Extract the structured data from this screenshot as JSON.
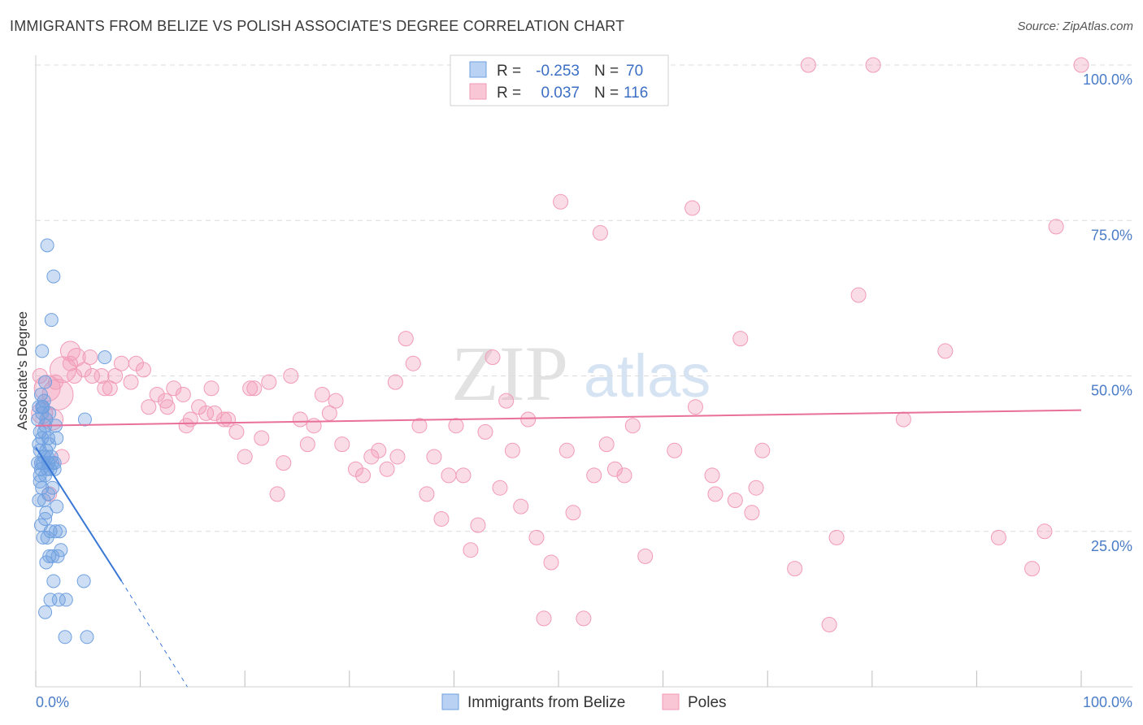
{
  "title": "IMMIGRANTS FROM BELIZE VS POLISH ASSOCIATE'S DEGREE CORRELATION CHART",
  "source": "Source: ZipAtlas.com",
  "watermark": {
    "zip": "ZIP",
    "atlas": "atlas"
  },
  "colors": {
    "blue": "#6fa0e0",
    "blue_line": "#3a78d6",
    "pink": "#f29bb6",
    "pink_line": "#e8709a"
  },
  "legend": {
    "rows": [
      {
        "r_label": "R =",
        "r_value": "-0.253",
        "n_label": "N =",
        "n_value": "70"
      },
      {
        "r_label": "R =",
        "r_value": "0.037",
        "n_label": "N =",
        "n_value": "116"
      }
    ]
  },
  "bottom_legend": {
    "series1": "Immigrants from Belize",
    "series2": "Poles"
  },
  "chart_data": {
    "type": "scatter",
    "title": "IMMIGRANTS FROM BELIZE VS POLISH ASSOCIATE'S DEGREE CORRELATION CHART",
    "xlabel": "",
    "ylabel": "Associate's Degree",
    "xlim": [
      0,
      100
    ],
    "ylim": [
      0,
      100
    ],
    "x_ticks": [
      "0.0%",
      "100.0%"
    ],
    "y_ticks": [
      {
        "value": 25,
        "label": "25.0%"
      },
      {
        "value": 50,
        "label": "50.0%"
      },
      {
        "value": 75,
        "label": "75.0%"
      },
      {
        "value": 100,
        "label": "100.0%"
      }
    ],
    "grid": true,
    "series": [
      {
        "name": "Immigrants from Belize",
        "r": -0.253,
        "n": 70,
        "trend": {
          "x0": 0,
          "y0": 38.5,
          "x1": 8.2,
          "y1": 17.0,
          "dash_to_x": 14.5,
          "dash_to_y": 0.0
        },
        "points": [
          [
            0.3,
            39
          ],
          [
            0.4,
            41
          ],
          [
            0.5,
            36
          ],
          [
            0.6,
            44
          ],
          [
            0.7,
            45
          ],
          [
            0.8,
            37
          ],
          [
            0.9,
            42
          ],
          [
            1.0,
            38
          ],
          [
            1.1,
            35
          ],
          [
            1.2,
            40
          ],
          [
            0.5,
            47
          ],
          [
            0.6,
            54
          ],
          [
            0.9,
            49
          ],
          [
            1.1,
            71
          ],
          [
            1.7,
            66
          ],
          [
            1.5,
            59
          ],
          [
            1.3,
            44
          ],
          [
            1.9,
            42
          ],
          [
            2.0,
            40
          ],
          [
            1.8,
            36
          ],
          [
            0.4,
            33
          ],
          [
            0.6,
            32
          ],
          [
            0.8,
            30
          ],
          [
            1.0,
            28
          ],
          [
            1.2,
            36
          ],
          [
            1.4,
            35
          ],
          [
            1.6,
            36
          ],
          [
            1.8,
            35
          ],
          [
            2.0,
            29
          ],
          [
            0.7,
            24
          ],
          [
            1.4,
            25
          ],
          [
            1.9,
            25
          ],
          [
            2.3,
            25
          ],
          [
            1.1,
            24
          ],
          [
            1.3,
            21
          ],
          [
            1.0,
            20
          ],
          [
            1.6,
            21
          ],
          [
            2.1,
            21
          ],
          [
            2.4,
            22
          ],
          [
            1.7,
            17
          ],
          [
            1.4,
            14
          ],
          [
            2.2,
            14
          ],
          [
            2.9,
            14
          ],
          [
            0.9,
            12
          ],
          [
            2.8,
            8
          ],
          [
            4.9,
            8
          ],
          [
            4.6,
            17
          ],
          [
            4.7,
            43
          ],
          [
            6.6,
            53
          ],
          [
            0.3,
            45
          ],
          [
            0.2,
            43
          ],
          [
            0.4,
            38
          ],
          [
            0.6,
            40
          ],
          [
            0.8,
            41
          ],
          [
            1.0,
            43
          ],
          [
            0.5,
            35
          ],
          [
            0.7,
            36
          ],
          [
            0.9,
            34
          ],
          [
            1.2,
            31
          ],
          [
            1.5,
            37
          ],
          [
            0.3,
            30
          ],
          [
            0.5,
            26
          ],
          [
            1.1,
            37
          ],
          [
            1.3,
            39
          ],
          [
            0.6,
            45
          ],
          [
            0.8,
            46
          ],
          [
            0.2,
            36
          ],
          [
            0.4,
            34
          ],
          [
            1.6,
            32
          ],
          [
            0.9,
            27
          ]
        ]
      },
      {
        "name": "Poles",
        "r": 0.037,
        "n": 116,
        "trend": {
          "x0": 0,
          "y0": 42,
          "x1": 100,
          "y1": 44.5
        },
        "points": [
          [
            0.6,
            44
          ],
          [
            1.1,
            48
          ],
          [
            1.6,
            43
          ],
          [
            2.1,
            47
          ],
          [
            2.6,
            51
          ],
          [
            3.3,
            54
          ],
          [
            3.9,
            53
          ],
          [
            4.6,
            51
          ],
          [
            5.4,
            50
          ],
          [
            6.3,
            50
          ],
          [
            7.1,
            48
          ],
          [
            8.2,
            52
          ],
          [
            9.1,
            49
          ],
          [
            10.3,
            51
          ],
          [
            10.8,
            45
          ],
          [
            11.6,
            47
          ],
          [
            12.4,
            46
          ],
          [
            13.2,
            48
          ],
          [
            14.1,
            47
          ],
          [
            14.8,
            43
          ],
          [
            15.6,
            45
          ],
          [
            16.3,
            44
          ],
          [
            17.1,
            44
          ],
          [
            18.4,
            43
          ],
          [
            19.2,
            41
          ],
          [
            20.0,
            37
          ],
          [
            20.5,
            48
          ],
          [
            21.6,
            40
          ],
          [
            22.3,
            49
          ],
          [
            23.1,
            31
          ],
          [
            23.7,
            36
          ],
          [
            24.4,
            50
          ],
          [
            25.3,
            43
          ],
          [
            26.0,
            39
          ],
          [
            26.6,
            42
          ],
          [
            27.4,
            47
          ],
          [
            28.1,
            44
          ],
          [
            28.7,
            46
          ],
          [
            29.3,
            39
          ],
          [
            30.6,
            35
          ],
          [
            31.3,
            34
          ],
          [
            32.1,
            37
          ],
          [
            32.8,
            38
          ],
          [
            33.6,
            35
          ],
          [
            34.4,
            49
          ],
          [
            35.4,
            56
          ],
          [
            36.1,
            52
          ],
          [
            36.7,
            42
          ],
          [
            37.4,
            31
          ],
          [
            38.1,
            37
          ],
          [
            38.8,
            27
          ],
          [
            39.5,
            34
          ],
          [
            40.2,
            42
          ],
          [
            40.9,
            34
          ],
          [
            41.6,
            22
          ],
          [
            42.3,
            26
          ],
          [
            43.0,
            41
          ],
          [
            43.7,
            53
          ],
          [
            44.4,
            32
          ],
          [
            45.0,
            46
          ],
          [
            45.6,
            38
          ],
          [
            46.4,
            29
          ],
          [
            47.1,
            43
          ],
          [
            47.9,
            24
          ],
          [
            48.6,
            11
          ],
          [
            49.3,
            20
          ],
          [
            50.2,
            78
          ],
          [
            50.8,
            38
          ],
          [
            51.4,
            28
          ],
          [
            52.4,
            11
          ],
          [
            53.4,
            34
          ],
          [
            54.0,
            73
          ],
          [
            54.6,
            39
          ],
          [
            55.4,
            35
          ],
          [
            56.3,
            34
          ],
          [
            57.1,
            42
          ],
          [
            58.3,
            21
          ],
          [
            61.1,
            38
          ],
          [
            62.8,
            77
          ],
          [
            63.1,
            45
          ],
          [
            64.7,
            34
          ],
          [
            65.0,
            31
          ],
          [
            66.9,
            30
          ],
          [
            67.4,
            56
          ],
          [
            68.5,
            28
          ],
          [
            68.9,
            32
          ],
          [
            69.5,
            38
          ],
          [
            72.6,
            19
          ],
          [
            75.9,
            10
          ],
          [
            76.6,
            24
          ],
          [
            78.7,
            63
          ],
          [
            83.0,
            43
          ],
          [
            87.0,
            54
          ],
          [
            92.1,
            24
          ],
          [
            95.3,
            19
          ],
          [
            96.5,
            25
          ],
          [
            97.6,
            74
          ],
          [
            73.9,
            100
          ],
          [
            80.1,
            100
          ],
          [
            100.0,
            100
          ],
          [
            6.6,
            48
          ],
          [
            9.6,
            52
          ],
          [
            3.3,
            52
          ],
          [
            12.6,
            45
          ],
          [
            7.6,
            50
          ],
          [
            14.4,
            42
          ],
          [
            20.9,
            48
          ],
          [
            34.6,
            37
          ],
          [
            18.0,
            43
          ],
          [
            16.8,
            48
          ],
          [
            2.5,
            37
          ],
          [
            1.3,
            31
          ],
          [
            5.2,
            53
          ],
          [
            3.7,
            50
          ],
          [
            1.9,
            49
          ],
          [
            0.4,
            50
          ]
        ]
      }
    ]
  }
}
